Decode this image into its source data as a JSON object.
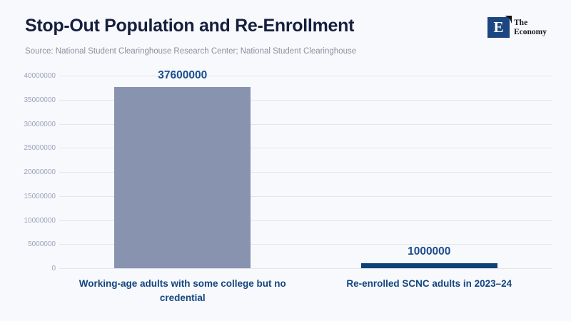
{
  "page": {
    "title": "Stop-Out Population and Re-Enrollment",
    "source": "Source: National Student Clearinghouse Research Center; National Student Clearinghouse"
  },
  "logo": {
    "letter": "E",
    "name_line1": "The",
    "name_line2": "Economy"
  },
  "colors": {
    "background": "#f8f9fd",
    "title": "#151f3d",
    "source_text": "#8b9099",
    "bar_primary": "#8793af",
    "bar_secondary": "#0d4279",
    "value_label": "#1b4e8d",
    "category_label": "#13467f",
    "tick_label": "#9aa3b8",
    "gridline": "#e4e6ea",
    "logo_square": "#1b4680"
  },
  "chart_data": {
    "type": "bar",
    "title": "Stop-Out Population and Re-Enrollment",
    "source": "Source: National Student Clearinghouse Research Center; National Student Clearinghouse",
    "categories": [
      "Working-age adults with some college but no credential",
      "Re-enrolled SCNC adults in 2023–24"
    ],
    "values": [
      37600000,
      1000000
    ],
    "value_labels": [
      "37600000",
      "1000000"
    ],
    "bar_colors": [
      "#8793af",
      "#0d4279"
    ],
    "ylim": [
      0,
      40000000
    ],
    "yticks": [
      0,
      5000000,
      10000000,
      15000000,
      20000000,
      25000000,
      30000000,
      35000000,
      40000000
    ],
    "ytick_labels": [
      "0",
      "5000000",
      "10000000",
      "15000000",
      "20000000",
      "25000000",
      "30000000",
      "35000000",
      "40000000"
    ],
    "grid": true,
    "legend": false,
    "xlabel": "",
    "ylabel": ""
  }
}
